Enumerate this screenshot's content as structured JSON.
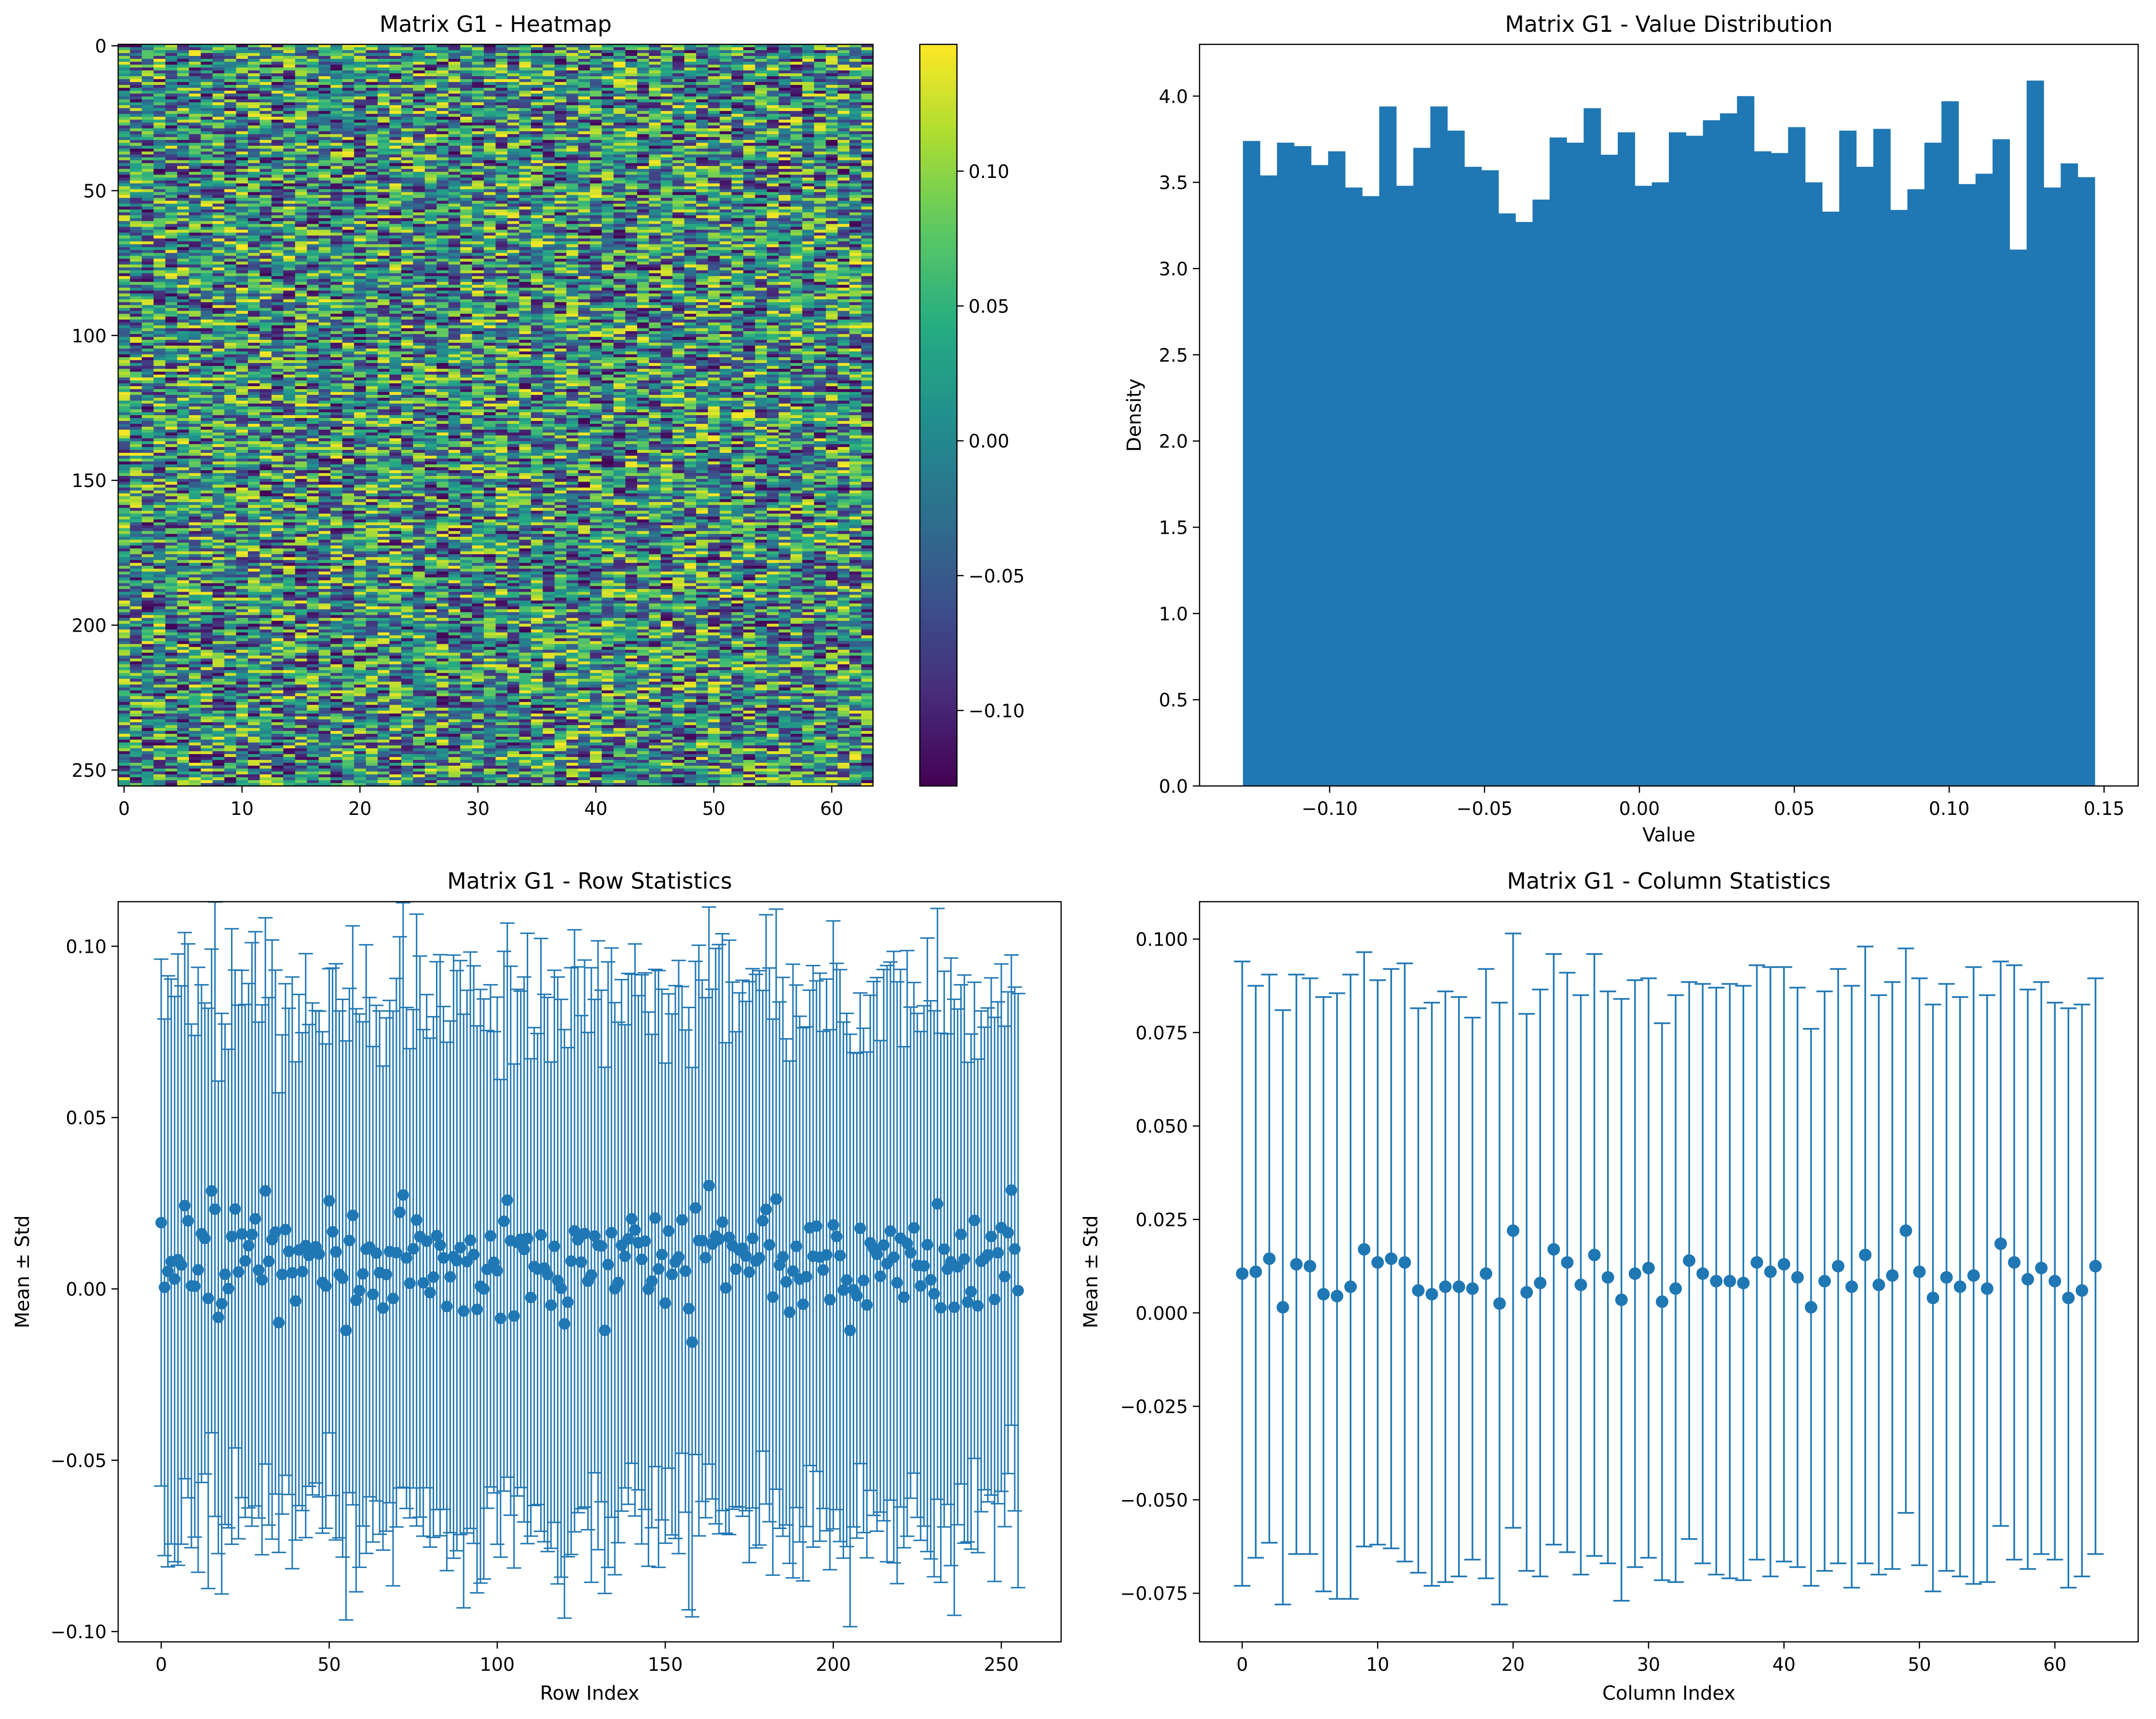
{
  "chart_data": [
    {
      "type": "heatmap",
      "title": "Matrix G1 - Heatmap",
      "xlabel": "",
      "ylabel": "",
      "shape": [
        256,
        64
      ],
      "colormap": "viridis",
      "xticks": [
        0,
        10,
        20,
        30,
        40,
        50,
        60
      ],
      "yticks": [
        0,
        50,
        100,
        150,
        200,
        250
      ],
      "colorbar": {
        "vmin": -0.128,
        "vmax": 0.147,
        "ticks": [
          0.1,
          0.05,
          0.0,
          -0.05,
          -0.1
        ],
        "tick_labels": [
          "0.10",
          "0.05",
          "0.00",
          "−0.05",
          "−0.10"
        ]
      },
      "values_note": "",
      "stats": {
        "min": -0.128,
        "max": 0.147
      }
    },
    {
      "type": "bar",
      "title": "Matrix G1 - Value Distribution",
      "xlabel": "Value",
      "ylabel": "Density",
      "bin_range": [
        -0.128,
        0.147
      ],
      "densities": [
        3.74,
        3.54,
        3.73,
        3.71,
        3.6,
        3.68,
        3.47,
        3.42,
        3.94,
        3.48,
        3.7,
        3.94,
        3.8,
        3.59,
        3.57,
        3.32,
        3.27,
        3.4,
        3.76,
        3.73,
        3.93,
        3.66,
        3.79,
        3.48,
        3.5,
        3.79,
        3.77,
        3.86,
        3.9,
        4.0,
        3.68,
        3.67,
        3.82,
        3.5,
        3.33,
        3.8,
        3.59,
        3.81,
        3.34,
        3.46,
        3.73,
        3.97,
        3.49,
        3.55,
        3.75,
        3.11,
        4.09,
        3.47,
        3.61,
        3.53
      ],
      "xlim": [
        -0.142,
        0.161
      ],
      "ylim": [
        0,
        4.3
      ],
      "xticks": [
        -0.1,
        -0.05,
        0.0,
        0.05,
        0.1,
        0.15
      ],
      "xtick_labels": [
        "−0.10",
        "−0.05",
        "0.00",
        "0.05",
        "0.10",
        "0.15"
      ],
      "yticks": [
        0.0,
        0.5,
        1.0,
        1.5,
        2.0,
        2.5,
        3.0,
        3.5,
        4.0
      ],
      "ytick_labels": [
        "0.0",
        "0.5",
        "1.0",
        "1.5",
        "2.0",
        "2.5",
        "3.0",
        "3.5",
        "4.0"
      ],
      "color": "#1f77b4"
    },
    {
      "type": "scatter",
      "title": "Matrix G1 - Row Statistics",
      "xlabel": "Row Index",
      "ylabel": "Mean ± Std",
      "errorbars": true,
      "n_points": 256,
      "x_range": [
        0,
        255
      ],
      "mean_range": [
        -0.019,
        0.036
      ],
      "std_range": [
        0.067,
        0.09
      ],
      "xlim": [
        -12.8,
        267.8
      ],
      "ylim": [
        -0.103,
        0.113
      ],
      "xticks": [
        0,
        50,
        100,
        150,
        200,
        250
      ],
      "yticks": [
        -0.1,
        -0.05,
        0.0,
        0.05,
        0.1
      ],
      "ytick_labels": [
        "−0.10",
        "−0.05",
        "0.00",
        "0.05",
        "0.10"
      ],
      "color": "#1f77b4"
    },
    {
      "type": "scatter",
      "title": "Matrix G1 - Column Statistics",
      "xlabel": "Column Index",
      "ylabel": "Mean ± Std",
      "errorbars": true,
      "x": [
        0,
        1,
        2,
        3,
        4,
        5,
        6,
        7,
        8,
        9,
        10,
        11,
        12,
        13,
        14,
        15,
        16,
        17,
        18,
        19,
        20,
        21,
        22,
        23,
        24,
        25,
        26,
        27,
        28,
        29,
        30,
        31,
        32,
        33,
        34,
        35,
        36,
        37,
        38,
        39,
        40,
        41,
        42,
        43,
        44,
        45,
        46,
        47,
        48,
        49,
        50,
        51,
        52,
        53,
        54,
        55,
        56,
        57,
        58,
        59,
        60,
        61,
        62,
        63
      ],
      "mean": [
        0.0105,
        0.011,
        0.0145,
        0.0015,
        0.013,
        0.0125,
        0.005,
        0.0045,
        0.007,
        0.017,
        0.0135,
        0.0145,
        0.0135,
        0.006,
        0.005,
        0.007,
        0.007,
        0.0065,
        0.0105,
        0.0025,
        0.022,
        0.0055,
        0.008,
        0.017,
        0.0135,
        0.0075,
        0.0155,
        0.0095,
        0.0035,
        0.0105,
        0.012,
        0.003,
        0.0065,
        0.014,
        0.0105,
        0.0085,
        0.0085,
        0.008,
        0.0135,
        0.011,
        0.013,
        0.0095,
        0.0015,
        0.0085,
        0.0125,
        0.007,
        0.0155,
        0.0075,
        0.01,
        0.022,
        0.011,
        0.004,
        0.0095,
        0.007,
        0.01,
        0.0065,
        0.0185,
        0.0135,
        0.009,
        0.012,
        0.0085,
        0.004,
        0.006,
        0.0125
      ],
      "std": [
        0.0835,
        0.0765,
        0.076,
        0.0795,
        0.0775,
        0.077,
        0.0795,
        0.081,
        0.0835,
        0.0795,
        0.0755,
        0.0775,
        0.08,
        0.0755,
        0.078,
        0.079,
        0.0775,
        0.0725,
        0.0815,
        0.0805,
        0.0795,
        0.0745,
        0.0785,
        0.079,
        0.0775,
        0.0775,
        0.0805,
        0.0765,
        0.0805,
        0.0785,
        0.0775,
        0.0745,
        0.0785,
        0.0745,
        0.0775,
        0.0785,
        0.0795,
        0.0795,
        0.0795,
        0.0815,
        0.0795,
        0.0775,
        0.0745,
        0.0775,
        0.0795,
        0.0805,
        0.0825,
        0.0775,
        0.0785,
        0.0755,
        0.0785,
        0.0785,
        0.0785,
        0.0775,
        0.0825,
        0.0785,
        0.0755,
        0.0795,
        0.0775,
        0.0765,
        0.0745,
        0.0775,
        0.0765,
        0.077
      ],
      "xlim": [
        -3.15,
        66.15
      ],
      "ylim": [
        -0.088,
        0.11
      ],
      "xticks": [
        0,
        10,
        20,
        30,
        40,
        50,
        60
      ],
      "yticks": [
        -0.075,
        -0.05,
        -0.025,
        0.0,
        0.025,
        0.05,
        0.075,
        0.1
      ],
      "ytick_labels": [
        "−0.075",
        "−0.050",
        "−0.025",
        "0.000",
        "0.025",
        "0.050",
        "0.075",
        "0.100"
      ],
      "color": "#1f77b4"
    }
  ]
}
